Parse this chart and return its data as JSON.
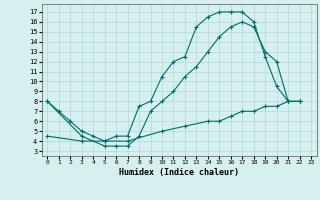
{
  "xlabel": "Humidex (Indice chaleur)",
  "bg_color": "#d6f0ef",
  "line_color": "#006b6b",
  "grid_color": "#b0d8d8",
  "xlim": [
    -0.5,
    23.5
  ],
  "ylim": [
    2.5,
    17.8
  ],
  "xticks": [
    0,
    1,
    2,
    3,
    4,
    5,
    6,
    7,
    8,
    9,
    10,
    11,
    12,
    13,
    14,
    15,
    16,
    17,
    18,
    19,
    20,
    21,
    22,
    23
  ],
  "yticks": [
    3,
    4,
    5,
    6,
    7,
    8,
    9,
    10,
    11,
    12,
    13,
    14,
    15,
    16,
    17
  ],
  "line1_x": [
    0,
    1,
    2,
    3,
    4,
    5,
    6,
    7,
    8,
    9,
    10,
    11,
    12,
    13,
    14,
    15,
    16,
    17,
    18,
    19,
    20,
    21,
    22
  ],
  "line1_y": [
    8,
    7,
    6,
    5,
    4.5,
    4,
    4.5,
    4.5,
    7.5,
    8,
    10.5,
    12,
    12.5,
    15.5,
    16.5,
    17,
    17,
    17,
    16,
    12.5,
    9.5,
    8,
    8
  ],
  "line2_x": [
    0,
    3,
    5,
    6,
    7,
    8,
    9,
    10,
    11,
    12,
    13,
    14,
    15,
    16,
    17,
    18,
    19,
    20,
    21,
    22
  ],
  "line2_y": [
    8,
    4.5,
    3.5,
    3.5,
    3.5,
    4.5,
    7,
    8,
    9,
    10.5,
    11.5,
    13,
    14.5,
    15.5,
    16,
    15.5,
    13,
    12,
    8,
    8
  ],
  "line3_x": [
    0,
    3,
    5,
    7,
    10,
    12,
    14,
    15,
    16,
    17,
    18,
    19,
    20,
    21,
    22
  ],
  "line3_y": [
    4.5,
    4,
    4,
    4,
    5,
    5.5,
    6,
    6,
    6.5,
    7,
    7,
    7.5,
    7.5,
    8,
    8
  ]
}
